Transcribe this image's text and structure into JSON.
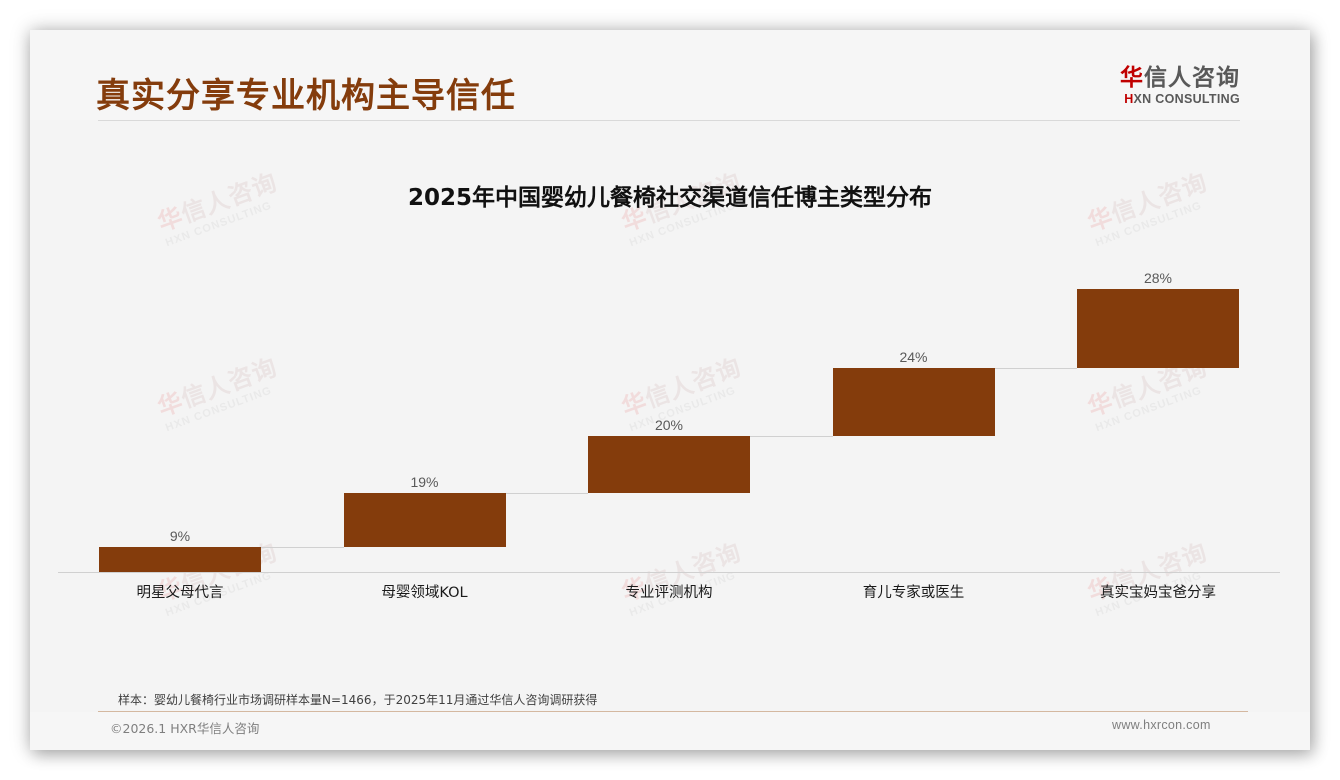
{
  "header": {
    "title": "真实分享专业机构主导信任",
    "logo_cn_accent": "华",
    "logo_cn_rest": "信人咨询",
    "logo_en_accent": "H",
    "logo_en_rest": "XN CONSULTING"
  },
  "watermark": {
    "cn_accent": "华",
    "cn_rest": "信人咨询",
    "en": "HXN CONSULTING"
  },
  "chart_data": {
    "type": "bar",
    "subtype": "waterfall",
    "title": "2025年中国婴幼儿餐椅社交渠道信任博主类型分布",
    "categories": [
      "明星父母代言",
      "母婴领域KOL",
      "专业评测机构",
      "育儿专家或医生",
      "真实宝妈宝爸分享"
    ],
    "values": [
      9,
      19,
      20,
      24,
      28
    ],
    "labels": [
      "9%",
      "19%",
      "20%",
      "24%",
      "28%"
    ],
    "unit": "%",
    "xlabel": "",
    "ylabel": "",
    "ylim": [
      0,
      100
    ],
    "grid": false,
    "legend": "none",
    "bar_color": "#843c0c"
  },
  "footer": {
    "source": "样本：婴幼儿餐椅行业市场调研样本量N=1466，于2025年11月通过华信人咨询调研获得",
    "copyright": "©2026.1 HXR华信人咨询",
    "website": "www.hxrcon.com"
  }
}
